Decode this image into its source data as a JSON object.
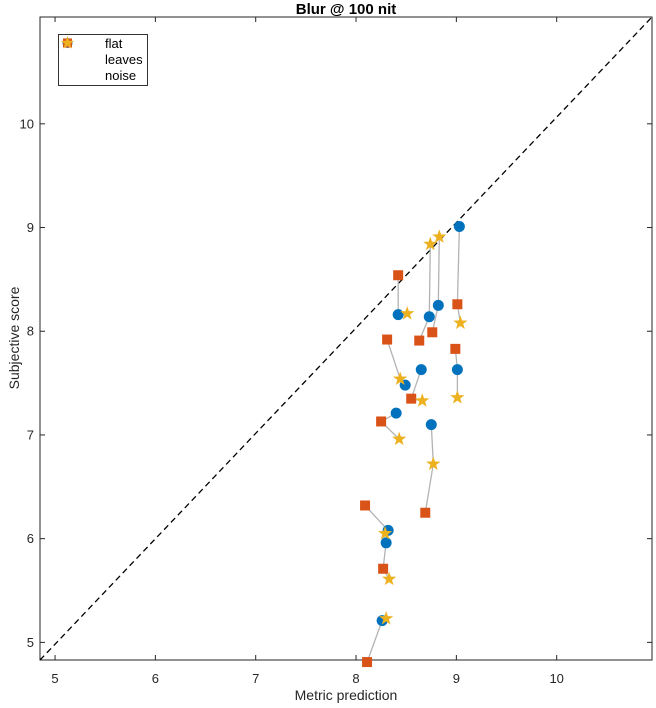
{
  "figure": {
    "title": "Blur @ 100 nit",
    "xlabel": "Metric prediction",
    "ylabel": "Subjective score"
  },
  "legend": {
    "position": "top-left",
    "items": [
      {
        "label": "flat",
        "marker": "circle",
        "color": "#0072BD"
      },
      {
        "label": "leaves",
        "marker": "square",
        "color": "#D95319"
      },
      {
        "label": "noise",
        "marker": "pentagram",
        "color": "#EDB120"
      }
    ]
  },
  "chart_data": {
    "type": "scatter",
    "title": "Blur @ 100 nit",
    "xlabel": "Metric prediction",
    "ylabel": "Subjective score",
    "xlim": [
      4.85,
      10.95
    ],
    "ylim": [
      4.83,
      11.03
    ],
    "x_ticks": [
      5,
      6,
      7,
      8,
      9,
      10
    ],
    "y_ticks": [
      5,
      6,
      7,
      8,
      9,
      10
    ],
    "grid": false,
    "identity_line": {
      "type": "y=x",
      "style": "dashed",
      "color": "#000000"
    },
    "connector_color": "#b3b3b3",
    "axis_color": "#262626",
    "series": [
      {
        "name": "flat",
        "marker": "circle",
        "color": "#0072BD"
      },
      {
        "name": "leaves",
        "marker": "square",
        "color": "#D95319"
      },
      {
        "name": "noise",
        "marker": "pentagram",
        "color": "#EDB120"
      }
    ],
    "groups": [
      {
        "points": [
          {
            "series": "flat",
            "x": 9.03,
            "y": 9.01
          },
          {
            "series": "leaves",
            "x": 9.01,
            "y": 8.26
          },
          {
            "series": "noise",
            "x": 9.04,
            "y": 8.08
          }
        ]
      },
      {
        "points": [
          {
            "series": "noise",
            "x": 8.83,
            "y": 8.91
          },
          {
            "series": "flat",
            "x": 8.82,
            "y": 8.25
          },
          {
            "series": "leaves",
            "x": 8.76,
            "y": 7.99
          }
        ]
      },
      {
        "points": [
          {
            "series": "noise",
            "x": 8.74,
            "y": 8.84
          },
          {
            "series": "flat",
            "x": 8.73,
            "y": 8.14
          },
          {
            "series": "leaves",
            "x": 8.63,
            "y": 7.91
          }
        ]
      },
      {
        "points": [
          {
            "series": "leaves",
            "x": 8.42,
            "y": 8.54
          },
          {
            "series": "flat",
            "x": 8.42,
            "y": 8.16
          },
          {
            "series": "noise",
            "x": 8.51,
            "y": 8.17
          }
        ]
      },
      {
        "points": [
          {
            "series": "leaves",
            "x": 8.31,
            "y": 7.92
          },
          {
            "series": "noise",
            "x": 8.44,
            "y": 7.54
          },
          {
            "series": "flat",
            "x": 8.49,
            "y": 7.48
          }
        ]
      },
      {
        "points": [
          {
            "series": "flat",
            "x": 8.65,
            "y": 7.63
          },
          {
            "series": "leaves",
            "x": 8.55,
            "y": 7.35
          },
          {
            "series": "noise",
            "x": 8.66,
            "y": 7.33
          }
        ]
      },
      {
        "points": [
          {
            "series": "leaves",
            "x": 8.99,
            "y": 7.83
          },
          {
            "series": "flat",
            "x": 9.01,
            "y": 7.63
          },
          {
            "series": "noise",
            "x": 9.01,
            "y": 7.36
          }
        ]
      },
      {
        "points": [
          {
            "series": "flat",
            "x": 8.4,
            "y": 7.21
          },
          {
            "series": "leaves",
            "x": 8.25,
            "y": 7.13
          },
          {
            "series": "noise",
            "x": 8.43,
            "y": 6.96
          }
        ]
      },
      {
        "points": [
          {
            "series": "flat",
            "x": 8.75,
            "y": 7.1
          },
          {
            "series": "noise",
            "x": 8.77,
            "y": 6.72
          },
          {
            "series": "leaves",
            "x": 8.69,
            "y": 6.25
          }
        ]
      },
      {
        "points": [
          {
            "series": "leaves",
            "x": 8.09,
            "y": 6.32
          },
          {
            "series": "flat",
            "x": 8.32,
            "y": 6.08
          },
          {
            "series": "noise",
            "x": 8.29,
            "y": 6.05
          }
        ]
      },
      {
        "points": [
          {
            "series": "flat",
            "x": 8.3,
            "y": 5.96
          },
          {
            "series": "leaves",
            "x": 8.27,
            "y": 5.71
          },
          {
            "series": "noise",
            "x": 8.33,
            "y": 5.61
          }
        ]
      },
      {
        "points": [
          {
            "series": "noise",
            "x": 8.3,
            "y": 5.23
          },
          {
            "series": "flat",
            "x": 8.26,
            "y": 5.21
          },
          {
            "series": "leaves",
            "x": 8.11,
            "y": 4.81
          }
        ]
      }
    ]
  }
}
